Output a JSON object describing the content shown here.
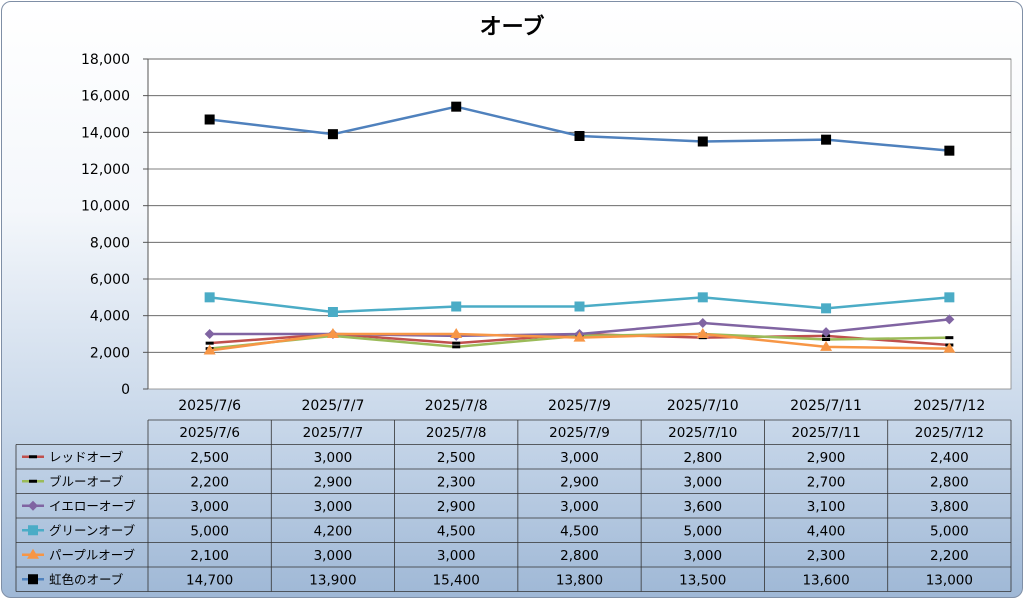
{
  "chart_data": {
    "type": "line",
    "title": "オーブ",
    "xlabel": "",
    "ylabel": "",
    "ylim": [
      0,
      18000
    ],
    "yticks": [
      "0",
      "2,000",
      "4,000",
      "6,000",
      "8,000",
      "10,000",
      "12,000",
      "14,000",
      "16,000",
      "18,000"
    ],
    "grid": true,
    "legend": "data-table-left",
    "categories": [
      "2025/7/6",
      "2025/7/7",
      "2025/7/8",
      "2025/7/9",
      "2025/7/10",
      "2025/7/11",
      "2025/7/12"
    ],
    "series": [
      {
        "name": "レッドオーブ",
        "color": "#c0504d",
        "marker": "dash",
        "values": [
          2500,
          3000,
          2500,
          3000,
          2800,
          2900,
          2400
        ],
        "labels": [
          "2,500",
          "3,000",
          "2,500",
          "3,000",
          "2,800",
          "2,900",
          "2,400"
        ]
      },
      {
        "name": "ブルーオーブ",
        "color": "#9bbb59",
        "marker": "dash",
        "values": [
          2200,
          2900,
          2300,
          2900,
          3000,
          2700,
          2800
        ],
        "labels": [
          "2,200",
          "2,900",
          "2,300",
          "2,900",
          "3,000",
          "2,700",
          "2,800"
        ]
      },
      {
        "name": "イエローオーブ",
        "color": "#8064a2",
        "marker": "diamond",
        "values": [
          3000,
          3000,
          2900,
          3000,
          3600,
          3100,
          3800
        ],
        "labels": [
          "3,000",
          "3,000",
          "2,900",
          "3,000",
          "3,600",
          "3,100",
          "3,800"
        ]
      },
      {
        "name": "グリーンオーブ",
        "color": "#4bacc6",
        "marker": "square",
        "values": [
          5000,
          4200,
          4500,
          4500,
          5000,
          4400,
          5000
        ],
        "labels": [
          "5,000",
          "4,200",
          "4,500",
          "4,500",
          "5,000",
          "4,400",
          "5,000"
        ]
      },
      {
        "name": "パープルオーブ",
        "color": "#f79646",
        "marker": "triangle",
        "values": [
          2100,
          3000,
          3000,
          2800,
          3000,
          2300,
          2200
        ],
        "labels": [
          "2,100",
          "3,000",
          "3,000",
          "2,800",
          "3,000",
          "2,300",
          "2,200"
        ]
      },
      {
        "name": "虹色のオーブ",
        "color": "#4f81bd",
        "marker": "square-black",
        "values": [
          14700,
          13900,
          15400,
          13800,
          13500,
          13600,
          13000
        ],
        "labels": [
          "14,700",
          "13,900",
          "15,400",
          "13,800",
          "13,500",
          "13,600",
          "13,000"
        ]
      }
    ]
  }
}
